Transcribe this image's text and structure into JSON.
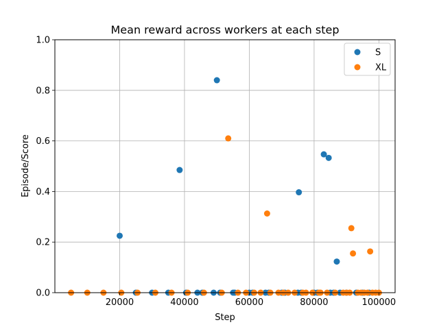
{
  "chart_data": {
    "type": "scatter",
    "title": "Mean reward across workers at each step",
    "xlabel": "Step",
    "ylabel": "Episode/Score",
    "xlim": [
      0,
      105000
    ],
    "ylim": [
      0,
      1.0
    ],
    "xticks": [
      20000,
      40000,
      60000,
      80000,
      100000
    ],
    "xtick_labels": [
      "20000",
      "40000",
      "60000",
      "80000",
      "100000"
    ],
    "yticks": [
      0.0,
      0.2,
      0.4,
      0.6,
      0.8,
      1.0
    ],
    "ytick_labels": [
      "0.0",
      "0.2",
      "0.4",
      "0.6",
      "0.8",
      "1.0"
    ],
    "grid": true,
    "legend_position": "top-right",
    "series": [
      {
        "name": "S",
        "color": "#1f77b4",
        "points": [
          [
            20000,
            0.225
          ],
          [
            25000,
            0.0
          ],
          [
            30000,
            0.0
          ],
          [
            35000,
            0.0
          ],
          [
            38500,
            0.485
          ],
          [
            40500,
            0.0
          ],
          [
            44000,
            0.0
          ],
          [
            45500,
            0.0
          ],
          [
            49000,
            0.0
          ],
          [
            50000,
            0.84
          ],
          [
            51000,
            0.0
          ],
          [
            55000,
            0.0
          ],
          [
            55500,
            0.0
          ],
          [
            60000,
            0.0
          ],
          [
            61000,
            0.0
          ],
          [
            65000,
            0.0
          ],
          [
            66000,
            0.0
          ],
          [
            70000,
            0.0
          ],
          [
            71000,
            0.0
          ],
          [
            75000,
            0.0
          ],
          [
            75300,
            0.397
          ],
          [
            76000,
            0.0
          ],
          [
            80000,
            0.0
          ],
          [
            81000,
            0.0
          ],
          [
            83000,
            0.547
          ],
          [
            84500,
            0.533
          ],
          [
            85000,
            0.0
          ],
          [
            86000,
            0.0
          ],
          [
            87000,
            0.123
          ],
          [
            88000,
            0.0
          ],
          [
            90000,
            0.0
          ],
          [
            93000,
            0.0
          ],
          [
            95000,
            0.0
          ],
          [
            97000,
            0.0
          ]
        ]
      },
      {
        "name": "XL",
        "color": "#ff7f0e",
        "points": [
          [
            5000,
            0.0
          ],
          [
            10000,
            0.0
          ],
          [
            15000,
            0.0
          ],
          [
            20500,
            0.0
          ],
          [
            25500,
            0.0
          ],
          [
            31000,
            0.0
          ],
          [
            36000,
            0.0
          ],
          [
            41000,
            0.0
          ],
          [
            46000,
            0.0
          ],
          [
            51500,
            0.0
          ],
          [
            53500,
            0.61
          ],
          [
            56500,
            0.0
          ],
          [
            59000,
            0.0
          ],
          [
            61500,
            0.0
          ],
          [
            63500,
            0.0
          ],
          [
            65500,
            0.313
          ],
          [
            66500,
            0.0
          ],
          [
            69000,
            0.0
          ],
          [
            70500,
            0.0
          ],
          [
            72000,
            0.0
          ],
          [
            74000,
            0.0
          ],
          [
            76500,
            0.0
          ],
          [
            77500,
            0.0
          ],
          [
            79500,
            0.0
          ],
          [
            81500,
            0.0
          ],
          [
            82000,
            0.0
          ],
          [
            84000,
            0.0
          ],
          [
            86500,
            0.0
          ],
          [
            89000,
            0.0
          ],
          [
            90000,
            0.0
          ],
          [
            91000,
            0.0
          ],
          [
            91500,
            0.255
          ],
          [
            92000,
            0.155
          ],
          [
            93500,
            0.0
          ],
          [
            94500,
            0.0
          ],
          [
            95500,
            0.0
          ],
          [
            96500,
            0.0
          ],
          [
            97300,
            0.163
          ],
          [
            98000,
            0.0
          ],
          [
            99000,
            0.0
          ],
          [
            100000,
            0.0
          ]
        ]
      }
    ]
  }
}
